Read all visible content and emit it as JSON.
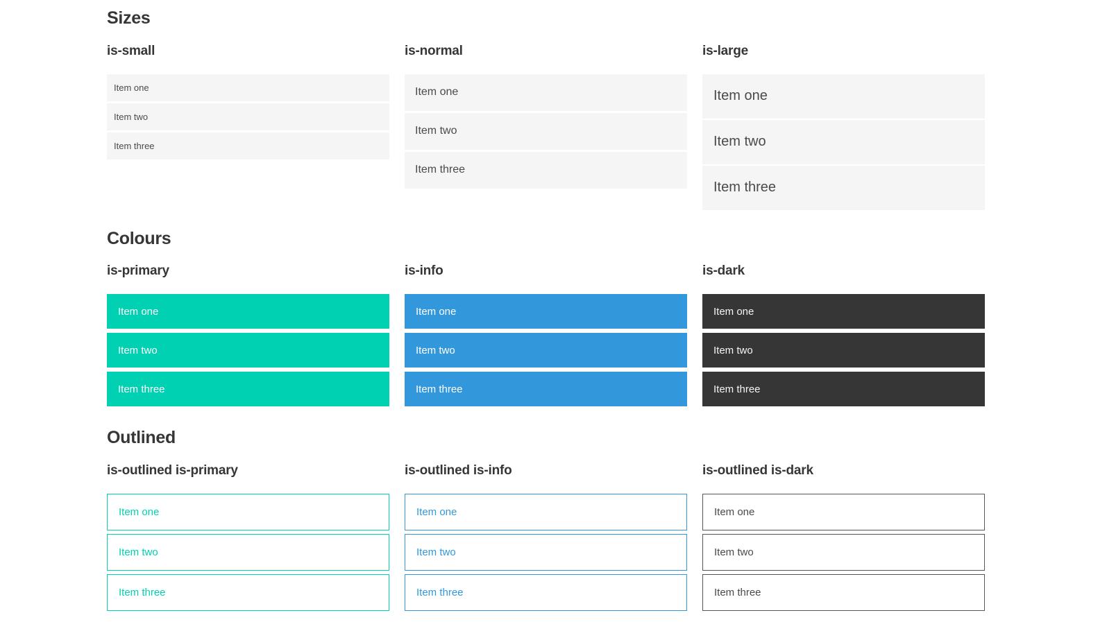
{
  "colors": {
    "primary": "#00d1b2",
    "info": "#3298db",
    "dark": "#363636",
    "item_bg": "#f5f5f5",
    "item_text": "#4a4a4a",
    "heading_text": "#363636",
    "light_text": "#ffffff",
    "dark_item_text": "#f5f5f5",
    "outline_dark_border": "#555555"
  },
  "sections": [
    {
      "title": "Sizes",
      "groups": [
        {
          "label": "is-small",
          "items": [
            "Item one",
            "Item two",
            "Item three"
          ]
        },
        {
          "label": "is-normal",
          "items": [
            "Item one",
            "Item two",
            "Item three"
          ]
        },
        {
          "label": "is-large",
          "items": [
            "Item one",
            "Item two",
            "Item three"
          ]
        }
      ]
    },
    {
      "title": "Colours",
      "groups": [
        {
          "label": "is-primary",
          "items": [
            "Item one",
            "Item two",
            "Item three"
          ]
        },
        {
          "label": "is-info",
          "items": [
            "Item one",
            "Item two",
            "Item three"
          ]
        },
        {
          "label": "is-dark",
          "items": [
            "Item one",
            "Item two",
            "Item three"
          ]
        }
      ]
    },
    {
      "title": "Outlined",
      "groups": [
        {
          "label": "is-outlined is-primary",
          "items": [
            "Item one",
            "Item two",
            "Item three"
          ]
        },
        {
          "label": "is-outlined is-info",
          "items": [
            "Item one",
            "Item two",
            "Item three"
          ]
        },
        {
          "label": "is-outlined is-dark",
          "items": [
            "Item one",
            "Item two",
            "Item three"
          ]
        }
      ]
    }
  ]
}
